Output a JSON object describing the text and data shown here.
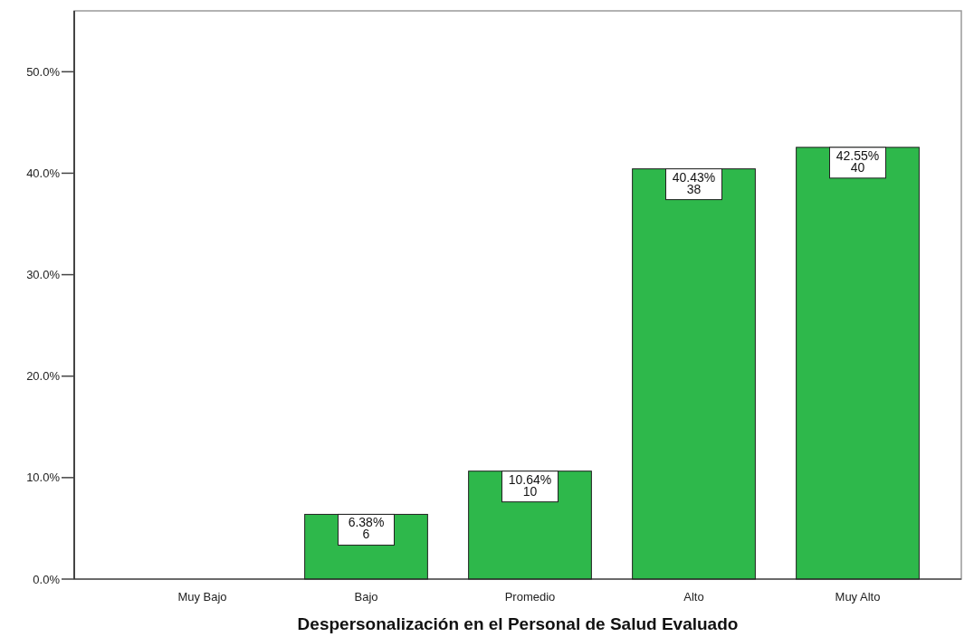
{
  "chart_data": {
    "type": "bar",
    "xlabel": "Despersonalización en el Personal de Salud Evaluado",
    "categories": [
      "Muy Bajo",
      "Bajo",
      "Promedio",
      "Alto",
      "Muy Alto"
    ],
    "values": [
      0,
      6.38,
      10.64,
      40.43,
      42.55
    ],
    "value_labels": [
      null,
      "6.38%\n6",
      "10.64%\n10",
      "40.43%\n38",
      "42.55%\n40"
    ],
    "color": "#2eb84b",
    "ylim": [
      0,
      56
    ],
    "yticks": [
      {
        "value": 0,
        "label": "0.0%"
      },
      {
        "value": 10,
        "label": "10.0%"
      },
      {
        "value": 20,
        "label": "20.0%"
      },
      {
        "value": 30,
        "label": "30.0%"
      },
      {
        "value": 40,
        "label": "40.0%"
      },
      {
        "value": 50,
        "label": "50.0%"
      }
    ],
    "grid": false
  }
}
